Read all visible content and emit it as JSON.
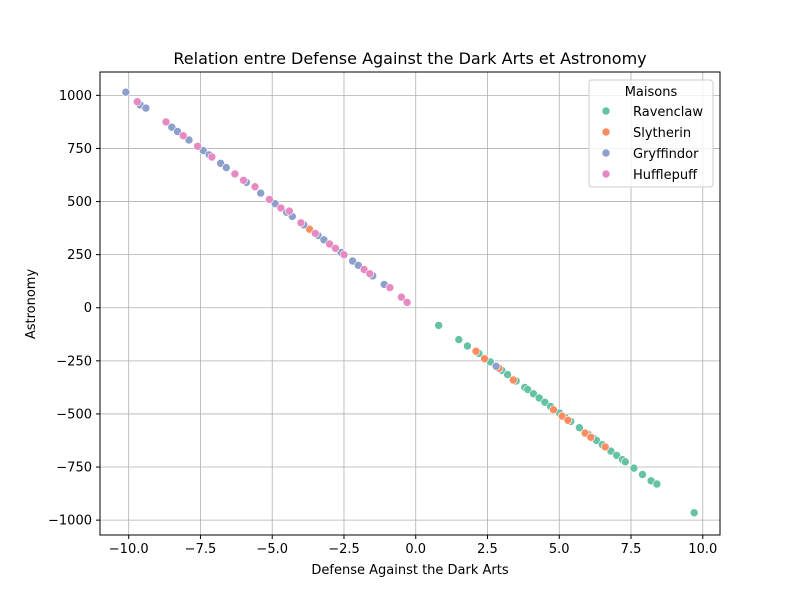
{
  "chart_data": {
    "type": "scatter",
    "title": "Relation entre Defense Against the Dark Arts et Astronomy",
    "xlabel": "Defense Against the Dark Arts",
    "ylabel": "Astronomy",
    "xlim": [
      -11.0,
      10.6
    ],
    "ylim": [
      -1070,
      1110
    ],
    "xticks": [
      -10.0,
      -7.5,
      -5.0,
      -2.5,
      0.0,
      2.5,
      5.0,
      7.5,
      10.0
    ],
    "xtick_labels": [
      "−10.0",
      "−7.5",
      "−5.0",
      "−2.5",
      "0.0",
      "2.5",
      "5.0",
      "7.5",
      "10.0"
    ],
    "yticks": [
      -1000,
      -750,
      -500,
      -250,
      0,
      250,
      500,
      750,
      1000
    ],
    "ytick_labels": [
      "−1000",
      "−750",
      "−500",
      "−250",
      "0",
      "250",
      "500",
      "750",
      "1000"
    ],
    "grid": true,
    "legend": {
      "title": "Maisons",
      "placement": "top-right"
    },
    "series": [
      {
        "name": "Ravenclaw",
        "color": "#66c2a5",
        "points": [
          [
            0.8,
            -83
          ],
          [
            1.5,
            -150
          ],
          [
            1.8,
            -180
          ],
          [
            2.2,
            -215
          ],
          [
            2.6,
            -255
          ],
          [
            3.0,
            -295
          ],
          [
            3.2,
            -315
          ],
          [
            3.5,
            -345
          ],
          [
            3.8,
            -375
          ],
          [
            3.9,
            -385
          ],
          [
            4.1,
            -405
          ],
          [
            4.3,
            -425
          ],
          [
            4.5,
            -445
          ],
          [
            4.7,
            -465
          ],
          [
            5.0,
            -495
          ],
          [
            5.2,
            -515
          ],
          [
            5.4,
            -535
          ],
          [
            5.7,
            -565
          ],
          [
            6.0,
            -595
          ],
          [
            6.2,
            -615
          ],
          [
            6.3,
            -625
          ],
          [
            6.5,
            -645
          ],
          [
            6.8,
            -675
          ],
          [
            7.0,
            -695
          ],
          [
            7.2,
            -715
          ],
          [
            7.3,
            -725
          ],
          [
            7.6,
            -755
          ],
          [
            7.9,
            -785
          ],
          [
            8.2,
            -815
          ],
          [
            8.4,
            -830
          ],
          [
            9.7,
            -965
          ]
        ]
      },
      {
        "name": "Slytherin",
        "color": "#fc8d62",
        "points": [
          [
            -3.7,
            370
          ],
          [
            2.1,
            -205
          ],
          [
            2.4,
            -240
          ],
          [
            2.9,
            -285
          ],
          [
            3.4,
            -340
          ],
          [
            4.8,
            -480
          ],
          [
            5.1,
            -510
          ],
          [
            5.3,
            -530
          ],
          [
            5.9,
            -590
          ],
          [
            6.1,
            -610
          ],
          [
            6.6,
            -655
          ]
        ]
      },
      {
        "name": "Gryffindor",
        "color": "#8da0cb",
        "points": [
          [
            -10.1,
            1015
          ],
          [
            -9.6,
            955
          ],
          [
            -9.4,
            940
          ],
          [
            -8.5,
            850
          ],
          [
            -8.3,
            830
          ],
          [
            -7.9,
            790
          ],
          [
            -7.4,
            740
          ],
          [
            -7.2,
            720
          ],
          [
            -6.8,
            680
          ],
          [
            -6.6,
            660
          ],
          [
            -5.9,
            590
          ],
          [
            -5.4,
            540
          ],
          [
            -4.9,
            490
          ],
          [
            -4.5,
            450
          ],
          [
            -4.3,
            430
          ],
          [
            -3.9,
            390
          ],
          [
            -3.4,
            340
          ],
          [
            -3.2,
            320
          ],
          [
            -2.6,
            260
          ],
          [
            -2.2,
            220
          ],
          [
            -2.0,
            200
          ],
          [
            -1.5,
            150
          ],
          [
            -1.1,
            110
          ],
          [
            2.8,
            -275
          ]
        ]
      },
      {
        "name": "Hufflepuff",
        "color": "#e78ac3",
        "points": [
          [
            -9.7,
            970
          ],
          [
            -8.7,
            875
          ],
          [
            -8.1,
            810
          ],
          [
            -7.6,
            760
          ],
          [
            -7.1,
            710
          ],
          [
            -6.3,
            630
          ],
          [
            -6.0,
            600
          ],
          [
            -5.6,
            570
          ],
          [
            -5.1,
            510
          ],
          [
            -4.7,
            470
          ],
          [
            -4.4,
            455
          ],
          [
            -4.0,
            400
          ],
          [
            -3.5,
            350
          ],
          [
            -3.0,
            300
          ],
          [
            -2.8,
            280
          ],
          [
            -2.5,
            250
          ],
          [
            -1.8,
            180
          ],
          [
            -1.6,
            160
          ],
          [
            -0.9,
            95
          ],
          [
            -0.5,
            50
          ],
          [
            -0.3,
            25
          ]
        ]
      }
    ]
  }
}
